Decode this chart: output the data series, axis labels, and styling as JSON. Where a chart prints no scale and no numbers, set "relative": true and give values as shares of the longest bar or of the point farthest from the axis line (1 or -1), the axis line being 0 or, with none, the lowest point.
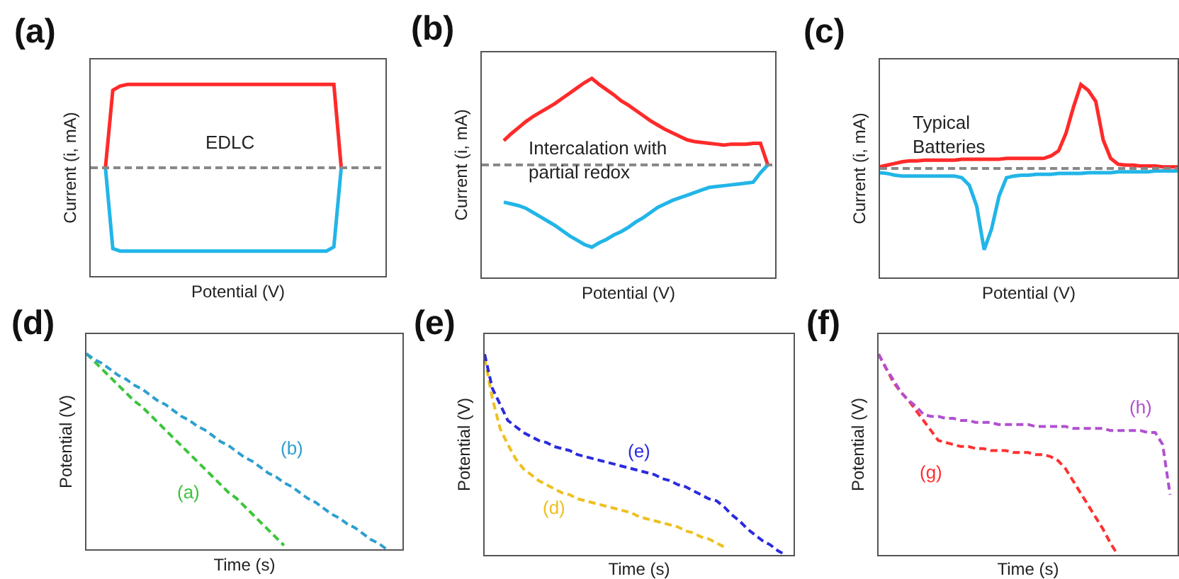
{
  "chart_data": [
    {
      "type": "line",
      "title": "(a)",
      "xlabel": "Potential (V)",
      "ylabel": "Current (i, mA)",
      "relative": true,
      "categories": [
        null,
        null,
        null,
        null,
        null,
        null,
        null,
        null,
        null,
        null,
        null,
        null,
        null,
        null,
        null,
        null,
        null,
        null,
        null,
        null,
        null,
        null,
        null,
        null,
        null,
        null,
        null,
        null,
        null,
        null,
        null,
        null,
        null,
        null,
        null,
        null,
        null,
        null,
        null,
        null,
        null
      ],
      "series": [
        {
          "color": "#ff2a2a",
          "values": [
            null,
            null,
            0,
            0.93,
            0.98,
            1,
            1,
            1,
            1,
            1,
            1,
            1,
            1,
            1,
            1,
            1,
            1,
            1,
            1,
            1,
            1,
            1,
            1,
            1,
            1,
            1,
            1,
            1,
            1,
            1,
            1,
            1,
            1,
            1,
            0,
            null,
            null,
            null,
            null,
            null,
            null
          ]
        },
        {
          "color": "#22b5e8",
          "values": [
            null,
            null,
            0,
            -0.97,
            -1,
            -1,
            -1,
            -1,
            -1,
            -1,
            -1,
            -1,
            -1,
            -1,
            -1,
            -1,
            -1,
            -1,
            -1,
            -1,
            -1,
            -1,
            -1,
            -1,
            -1,
            -1,
            -1,
            -1,
            -1,
            -1,
            -1,
            -1,
            -1,
            -0.95,
            0,
            null,
            null,
            null,
            null,
            null,
            null
          ]
        }
      ],
      "ref_lines": [
        {
          "axis": "y",
          "value": 0,
          "color": "#888888",
          "line_style": "dashed"
        }
      ],
      "annotations": [
        "EDLC"
      ]
    },
    {
      "type": "line",
      "title": "(b)",
      "xlabel": "Potential (V)",
      "ylabel": "Current (i, mA)",
      "relative": true,
      "categories": [
        null,
        null,
        null,
        null,
        null,
        null,
        null,
        null,
        null,
        null,
        null,
        null,
        null,
        null,
        null,
        null,
        null,
        null,
        null,
        null,
        null,
        null,
        null,
        null,
        null,
        null,
        null,
        null,
        null,
        null,
        null,
        null,
        null,
        null,
        null,
        null,
        null,
        null,
        null,
        null,
        null
      ],
      "series": [
        {
          "color": "#ff2a2a",
          "values": [
            null,
            null,
            null,
            0.28,
            0.36,
            0.43,
            0.5,
            0.56,
            0.61,
            0.66,
            0.71,
            0.77,
            0.83,
            0.89,
            0.95,
            1,
            0.93,
            0.87,
            0.81,
            0.74,
            0.69,
            0.63,
            0.57,
            0.51,
            0.46,
            0.41,
            0.37,
            0.33,
            0.29,
            0.27,
            0.26,
            0.25,
            0.24,
            0.23,
            0.24,
            0.24,
            0.24,
            0.25,
            0.25,
            0,
            null
          ]
        },
        {
          "color": "#22b5e8",
          "values": [
            null,
            null,
            null,
            -0.43,
            -0.45,
            -0.47,
            -0.5,
            -0.55,
            -0.6,
            -0.65,
            -0.7,
            -0.76,
            -0.82,
            -0.87,
            -0.92,
            -0.95,
            -0.9,
            -0.86,
            -0.81,
            -0.77,
            -0.72,
            -0.66,
            -0.61,
            -0.55,
            -0.49,
            -0.45,
            -0.41,
            -0.38,
            -0.35,
            -0.32,
            -0.29,
            -0.26,
            -0.25,
            -0.24,
            -0.23,
            -0.22,
            -0.21,
            -0.2,
            -0.09,
            0,
            null
          ]
        }
      ],
      "ref_lines": [
        {
          "axis": "y",
          "value": 0,
          "color": "#888888",
          "line_style": "dashed"
        }
      ],
      "annotations": [
        "Intercalation with\npartial redox"
      ]
    },
    {
      "type": "line",
      "title": "(c)",
      "xlabel": "Potential (V)",
      "ylabel": "Current (i, mA)",
      "relative": true,
      "categories": [
        null,
        null,
        null,
        null,
        null,
        null,
        null,
        null,
        null,
        null,
        null,
        null,
        null,
        null,
        null,
        null,
        null,
        null,
        null,
        null,
        null,
        null,
        null,
        null,
        null,
        null,
        null,
        null,
        null,
        null,
        null,
        null,
        null,
        null,
        null,
        null,
        null,
        null,
        null,
        null,
        null
      ],
      "series": [
        {
          "color": "#ff2a2a",
          "values": [
            0.02,
            0.04,
            0.06,
            0.08,
            0.09,
            0.09,
            0.1,
            0.1,
            0.1,
            0.1,
            0.1,
            0.11,
            0.11,
            0.11,
            0.11,
            0.11,
            0.11,
            0.12,
            0.12,
            0.12,
            0.12,
            0.12,
            0.12,
            0.15,
            0.21,
            0.42,
            0.73,
            1,
            0.93,
            0.8,
            0.34,
            0.12,
            0.05,
            0.04,
            0.04,
            0.03,
            0.03,
            0.03,
            0.02,
            0.02,
            0.02
          ]
        },
        {
          "color": "#22b5e8",
          "values": [
            -0.05,
            -0.06,
            -0.08,
            -0.09,
            -0.09,
            -0.09,
            -0.09,
            -0.09,
            -0.09,
            -0.09,
            -0.09,
            -0.11,
            -0.2,
            -0.45,
            -0.97,
            -0.72,
            -0.33,
            -0.11,
            -0.09,
            -0.08,
            -0.08,
            -0.07,
            -0.07,
            -0.07,
            -0.06,
            -0.06,
            -0.06,
            -0.06,
            -0.05,
            -0.05,
            -0.05,
            -0.05,
            -0.04,
            -0.04,
            -0.04,
            -0.04,
            -0.04,
            -0.03,
            -0.03,
            -0.03,
            -0.03
          ]
        }
      ],
      "ref_lines": [
        {
          "axis": "y",
          "value": 0,
          "color": "#888888",
          "line_style": "dashed"
        }
      ],
      "annotations": [
        "Typical\nBatteries"
      ]
    },
    {
      "type": "line",
      "title": "(d)",
      "xlabel": "Time (s)",
      "ylabel": "Potential (V)",
      "relative": true,
      "line_style": "dashed",
      "categories": [
        null,
        null,
        null,
        null,
        null,
        null,
        null,
        null,
        null,
        null,
        null,
        null,
        null,
        null,
        null,
        null,
        null,
        null,
        null,
        null,
        null,
        null,
        null,
        null,
        null,
        null,
        null,
        null,
        null,
        null,
        null,
        null,
        null,
        null,
        null,
        null,
        null,
        null,
        null,
        null,
        null
      ],
      "series": [
        {
          "name": "(a)",
          "color": "#3cc43c",
          "values": [
            1,
            0.96,
            0.92,
            0.88,
            0.84,
            0.8,
            0.76,
            0.73,
            0.69,
            0.65,
            0.61,
            0.57,
            0.53,
            0.49,
            0.45,
            0.41,
            0.37,
            0.33,
            0.29,
            0.26,
            0.22,
            0.18,
            0.14,
            0.1,
            0.06,
            0.02,
            null,
            null,
            null,
            null,
            null,
            null,
            null,
            null,
            null,
            null,
            null,
            null,
            null,
            null,
            null
          ]
        },
        {
          "name": "(b)",
          "color": "#2e9fcf",
          "values": [
            1,
            0.97,
            0.95,
            0.92,
            0.89,
            0.87,
            0.84,
            0.82,
            0.79,
            0.76,
            0.74,
            0.71,
            0.68,
            0.66,
            0.63,
            0.61,
            0.58,
            0.55,
            0.53,
            0.5,
            0.47,
            0.45,
            0.42,
            0.39,
            0.37,
            0.34,
            0.32,
            0.29,
            0.26,
            0.24,
            0.21,
            0.18,
            0.16,
            0.13,
            0.11,
            0.08,
            0.05,
            0.03,
            0,
            null,
            null
          ]
        }
      ]
    },
    {
      "type": "line",
      "title": "(e)",
      "xlabel": "Time (s)",
      "ylabel": "Potential (V)",
      "relative": true,
      "line_style": "dashed",
      "categories": [
        null,
        null,
        null,
        null,
        null,
        null,
        null,
        null,
        null,
        null,
        null,
        null,
        null,
        null,
        null,
        null,
        null,
        null,
        null,
        null,
        null,
        null,
        null,
        null,
        null,
        null,
        null,
        null,
        null,
        null,
        null,
        null,
        null,
        null,
        null,
        null,
        null,
        null,
        null,
        null,
        null
      ],
      "series": [
        {
          "name": "(d)",
          "color": "#eec020",
          "values": [
            0.98,
            0.78,
            0.63,
            0.55,
            0.48,
            0.43,
            0.4,
            0.37,
            0.35,
            0.33,
            0.31,
            0.3,
            0.28,
            0.27,
            0.26,
            0.25,
            0.24,
            0.23,
            0.22,
            0.21,
            0.19,
            0.18,
            0.17,
            0.16,
            0.15,
            0.14,
            0.12,
            0.11,
            0.09,
            0.08,
            0.06,
            0.04,
            null,
            null,
            null,
            null,
            null,
            null,
            null,
            null,
            null
          ]
        },
        {
          "name": "(e)",
          "color": "#2a2ae0",
          "values": [
            1,
            0.83,
            0.75,
            0.67,
            0.64,
            0.61,
            0.59,
            0.57,
            0.56,
            0.54,
            0.53,
            0.52,
            0.5,
            0.49,
            0.48,
            0.47,
            0.46,
            0.45,
            0.44,
            0.43,
            0.42,
            0.41,
            0.4,
            0.38,
            0.37,
            0.35,
            0.34,
            0.32,
            0.3,
            0.28,
            0.27,
            0.24,
            0.2,
            0.17,
            0.13,
            0.1,
            0.07,
            0.05,
            0.02,
            0,
            null
          ]
        }
      ]
    },
    {
      "type": "line",
      "title": "(f)",
      "xlabel": "Time (s)",
      "ylabel": "Potential (V)",
      "relative": true,
      "line_style": "dashed",
      "categories": [
        null,
        null,
        null,
        null,
        null,
        null,
        null,
        null,
        null,
        null,
        null,
        null,
        null,
        null,
        null,
        null,
        null,
        null,
        null,
        null,
        null,
        null,
        null,
        null,
        null,
        null,
        null,
        null,
        null,
        null,
        null,
        null,
        null,
        null,
        null,
        null,
        null,
        null,
        null,
        null,
        null
      ],
      "series": [
        {
          "name": "(g)",
          "color": "#ff3030",
          "values": [
            1,
            0.93,
            0.86,
            0.81,
            0.77,
            0.72,
            0.67,
            0.62,
            0.57,
            0.56,
            0.55,
            0.54,
            0.54,
            0.53,
            0.53,
            0.52,
            0.52,
            0.52,
            0.51,
            0.51,
            0.51,
            0.5,
            0.5,
            0.49,
            0.47,
            0.43,
            0.37,
            0.31,
            0.25,
            0.19,
            0.13,
            0.06,
            0,
            null,
            null,
            null,
            null,
            null,
            null,
            null,
            null
          ]
        },
        {
          "name": "(h)",
          "color": "#b050d0",
          "values": [
            1,
            0.93,
            0.87,
            0.81,
            0.77,
            0.74,
            0.7,
            0.69,
            0.69,
            0.68,
            0.68,
            0.67,
            0.67,
            0.66,
            0.66,
            0.66,
            0.65,
            0.65,
            0.65,
            0.65,
            0.65,
            0.64,
            0.64,
            0.64,
            0.64,
            0.64,
            0.63,
            0.63,
            0.63,
            0.63,
            0.63,
            0.62,
            0.62,
            0.62,
            0.62,
            0.62,
            0.61,
            0.61,
            0.55,
            0.3,
            null
          ]
        }
      ]
    }
  ]
}
